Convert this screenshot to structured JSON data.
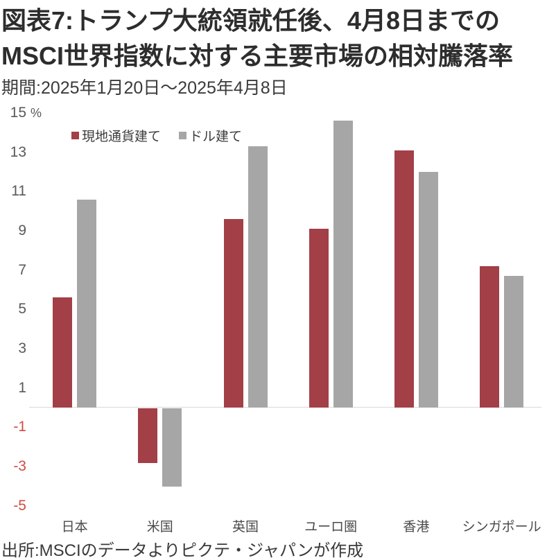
{
  "header": {
    "title_line1": "図表7:トランプ大統領就任後、4月8日までの",
    "title_line2": "MSCI世界指数に対する主要市場の相対騰落率",
    "subtitle": "期間:2025年1月20日〜2025年4月8日"
  },
  "chart_data": {
    "type": "bar",
    "title": "図表7:トランプ大統領就任後、4月8日までのMSCI世界指数に対する主要市場の相対騰落率",
    "subtitle": "期間:2025年1月20日〜2025年4月8日",
    "unit_label": "%",
    "categories": [
      "日本",
      "米国",
      "英国",
      "ユーロ圏",
      "香港",
      "シンガポール"
    ],
    "series": [
      {
        "name": "現地通貨建て",
        "color": "#a23f47",
        "values": [
          5.6,
          -2.8,
          9.6,
          9.1,
          13.1,
          7.2
        ]
      },
      {
        "name": "ドル建て",
        "color": "#a6a6a6",
        "values": [
          10.6,
          -4.0,
          13.3,
          14.6,
          12.0,
          6.7
        ]
      }
    ],
    "ylim": [
      -5,
      15
    ],
    "yticks": [
      15,
      13,
      11,
      9,
      7,
      5,
      3,
      1,
      -1,
      -3,
      -5
    ],
    "grid": false,
    "legend_position": "top-left-inside",
    "tick_color_positive": "#595959",
    "tick_color_negative": "#d24a43",
    "axis_line_color": "#d9d9d9"
  },
  "footer": {
    "source": "出所:MSCIのデータよりピクテ・ジャパンが作成"
  }
}
